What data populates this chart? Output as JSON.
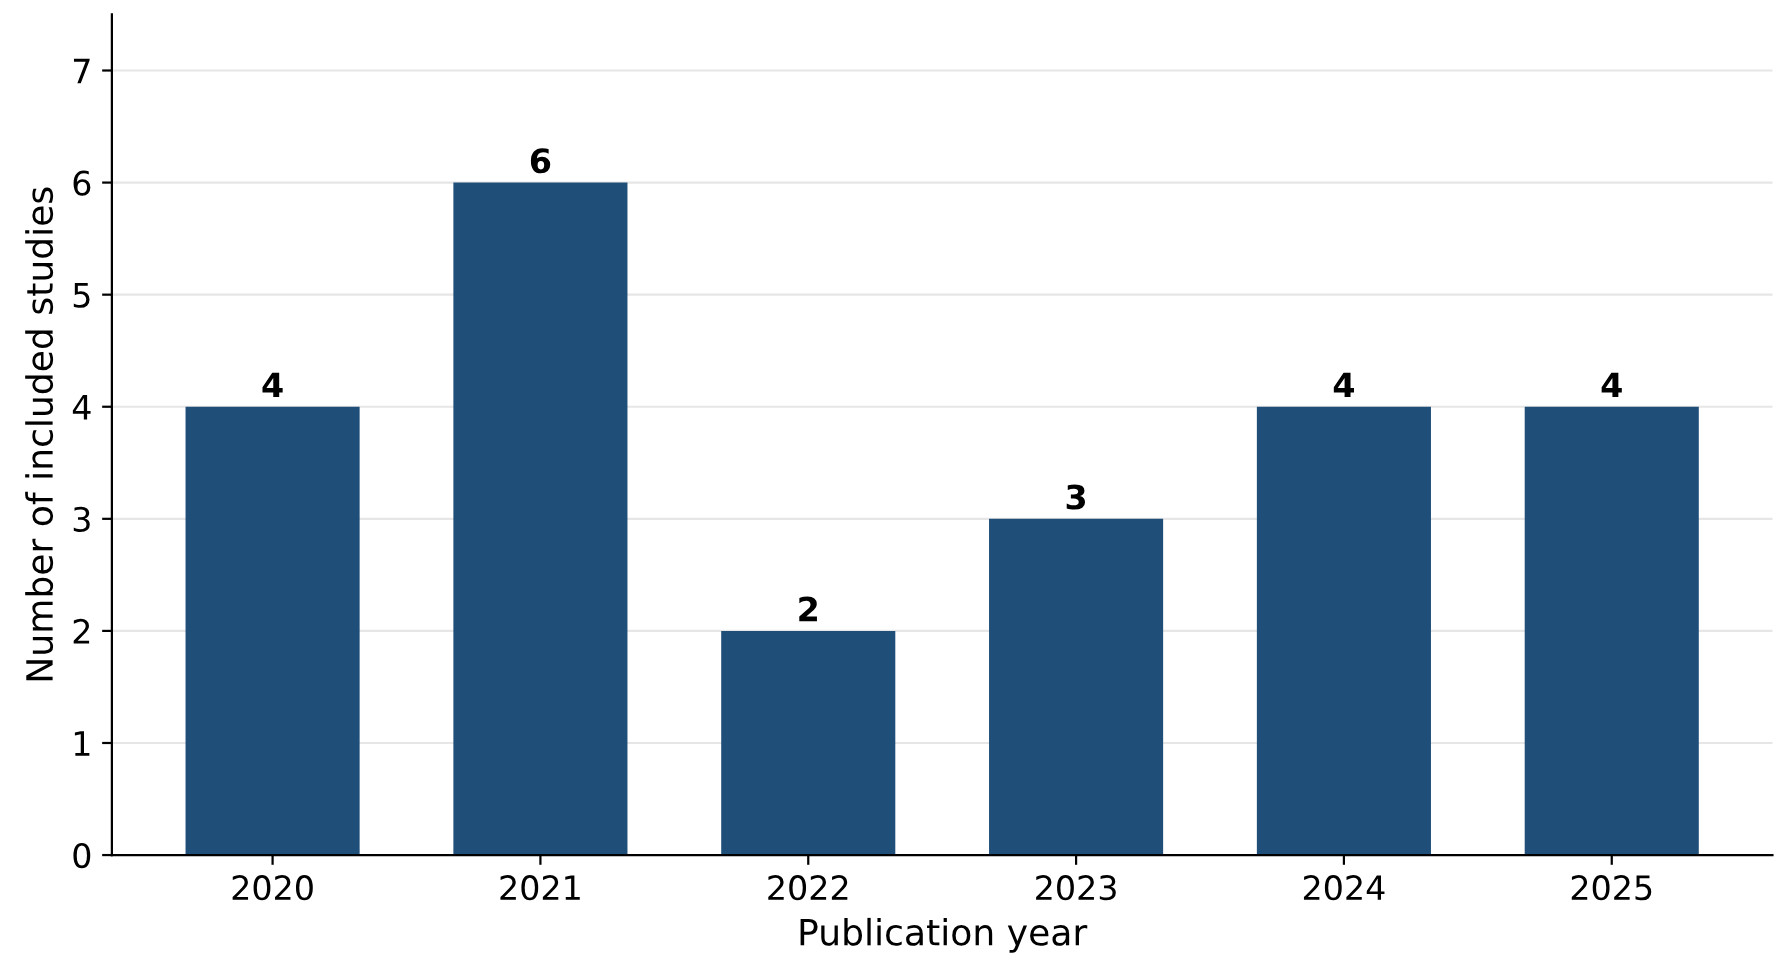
{
  "chart_data": {
    "type": "bar",
    "categories": [
      "2020",
      "2021",
      "2022",
      "2023",
      "2024",
      "2025"
    ],
    "values": [
      4,
      6,
      2,
      3,
      4,
      4
    ],
    "color": "#1f4e79",
    "xlabel": "Publication year",
    "ylabel": "Number of included studies",
    "ylim": [
      0,
      7.5
    ],
    "yticks": [
      0,
      1,
      2,
      3,
      4,
      5,
      6,
      7
    ],
    "grid": "y",
    "data_labels": true
  }
}
